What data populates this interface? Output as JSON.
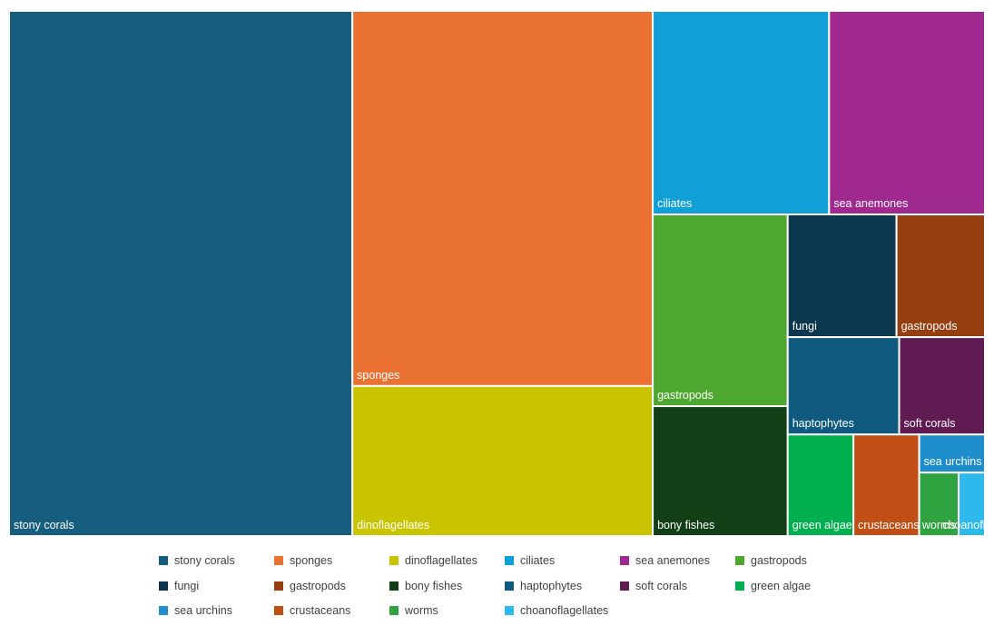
{
  "chart_data": {
    "type": "treemap",
    "title": "",
    "items": [
      {
        "name": "stony corals",
        "value": 216,
        "color": "#175E7E",
        "label": "stony corals"
      },
      {
        "name": "sponges",
        "value": 135,
        "color": "#E97132",
        "label": "sponges"
      },
      {
        "name": "dinoflagellates",
        "value": 54,
        "color": "#C8C400",
        "label": "dinoflagellates"
      },
      {
        "name": "ciliates",
        "value": 43,
        "color": "#119FD8",
        "label": "ciliates"
      },
      {
        "name": "sea anemones",
        "value": 38,
        "color": "#A0298F",
        "label": "sea anemones"
      },
      {
        "name": "gastropods",
        "value": 31,
        "color": "#4EA72E",
        "label": "gastropods"
      },
      {
        "name": "bony fishes",
        "value": 21,
        "color": "#123F16",
        "label": "bony fishes"
      },
      {
        "name": "fungi",
        "value": 16,
        "color": "#0D374E",
        "label": "fungi"
      },
      {
        "name": "gastropods",
        "value": 13,
        "color": "#953F10",
        "label": "gastropods"
      },
      {
        "name": "haptophytes",
        "value": 13,
        "color": "#0F5A7E",
        "label": "haptophytes"
      },
      {
        "name": "soft corals",
        "value": 10,
        "color": "#611B53",
        "label": "soft corals"
      },
      {
        "name": "green algae",
        "value": 8,
        "color": "#00B04F",
        "label": "green algae"
      },
      {
        "name": "crustaceans",
        "value": 8,
        "color": "#C14E14",
        "label": "crustaceans"
      },
      {
        "name": "sea urchins",
        "value": 3,
        "color": "#1D8ECB",
        "label": "sea urchins"
      },
      {
        "name": "worms",
        "value": 3,
        "color": "#2EA33F",
        "label": "worms"
      },
      {
        "name": "choanoflagellates",
        "value": 2,
        "color": "#2DB9EC",
        "label": "choanofla..."
      }
    ],
    "legend": {
      "position": "bottom",
      "entries": [
        {
          "label": "stony corals",
          "color": "#175E7E"
        },
        {
          "label": "sponges",
          "color": "#E97132"
        },
        {
          "label": "dinoflagellates",
          "color": "#C8C400"
        },
        {
          "label": "ciliates",
          "color": "#119FD8"
        },
        {
          "label": "sea anemones",
          "color": "#A0298F"
        },
        {
          "label": "gastropods",
          "color": "#4EA72E"
        },
        {
          "label": "fungi",
          "color": "#0D374E"
        },
        {
          "label": "gastropods",
          "color": "#953F10"
        },
        {
          "label": "bony fishes",
          "color": "#123F16"
        },
        {
          "label": "haptophytes",
          "color": "#0F5A7E"
        },
        {
          "label": "soft corals",
          "color": "#611B53"
        },
        {
          "label": "green algae",
          "color": "#00B04F"
        },
        {
          "label": "sea urchins",
          "color": "#1D8ECB"
        },
        {
          "label": "crustaceans",
          "color": "#C14E14"
        },
        {
          "label": "worms",
          "color": "#2EA33F"
        },
        {
          "label": "choanoflagellates",
          "color": "#2DB9EC"
        }
      ]
    }
  }
}
